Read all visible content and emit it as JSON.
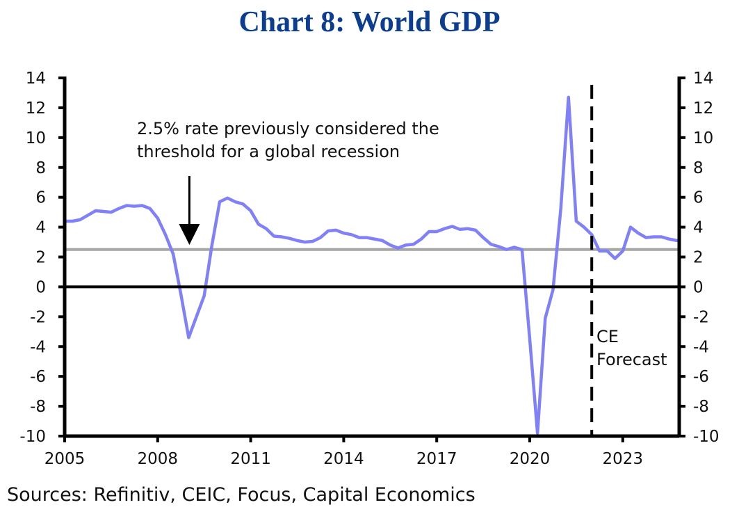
{
  "chart_data": {
    "type": "line",
    "title": "Chart 8: World GDP",
    "xlabel": "",
    "ylabel": "",
    "ylim": [
      -10,
      14
    ],
    "xlim": [
      2005,
      2024.85
    ],
    "y_ticks": [
      14,
      12,
      10,
      8,
      6,
      4,
      2,
      0,
      -2,
      -4,
      -6,
      -8,
      -10
    ],
    "y_tick_labels": [
      "14",
      "12",
      "10",
      "8",
      "6",
      "4",
      "2",
      "0",
      "-2",
      "-4",
      "-6",
      "-8",
      "-10"
    ],
    "x_ticks": [
      2005,
      2008,
      2011,
      2014,
      2017,
      2020,
      2023
    ],
    "x_tick_labels": [
      "2005",
      "2008",
      "2011",
      "2014",
      "2017",
      "2020",
      "2023"
    ],
    "grid": false,
    "dual_y_axis": true,
    "series": [
      {
        "name": "World GDP",
        "color": "#8080f8",
        "x_start": 2005,
        "x_step": 0.25,
        "values": [
          4.4,
          4.4,
          4.5,
          4.8,
          5.1,
          5.05,
          5.0,
          5.25,
          5.45,
          5.4,
          5.45,
          5.25,
          4.6,
          3.5,
          2.2,
          -0.5,
          -3.4,
          -2.0,
          -0.6,
          2.8,
          5.7,
          5.95,
          5.7,
          5.55,
          5.1,
          4.2,
          3.9,
          3.4,
          3.35,
          3.25,
          3.1,
          3.0,
          3.05,
          3.3,
          3.75,
          3.8,
          3.6,
          3.5,
          3.3,
          3.3,
          3.2,
          3.1,
          2.8,
          2.6,
          2.8,
          2.85,
          3.2,
          3.7,
          3.7,
          3.9,
          4.05,
          3.85,
          3.9,
          3.8,
          3.3,
          2.85,
          2.7,
          2.5,
          2.65,
          2.5,
          -3.5,
          -9.8,
          -2.1,
          -0.2,
          5.2,
          12.7,
          4.4,
          4.0,
          3.5,
          2.4,
          2.4,
          1.9,
          2.4,
          4.0,
          3.6,
          3.3,
          3.35,
          3.35,
          3.2,
          3.1
        ]
      }
    ],
    "reference_lines": [
      {
        "name": "recession-threshold",
        "type": "horizontal",
        "value": 2.5,
        "color": "#a6a6a6"
      },
      {
        "name": "zero-line",
        "type": "horizontal",
        "value": 0,
        "color": "#000000"
      },
      {
        "name": "forecast-divider",
        "type": "vertical",
        "value": 2022.0,
        "color": "#000000",
        "style": "dashed"
      }
    ],
    "annotations": [
      {
        "name": "threshold-note",
        "lines": [
          "2.5% rate previously considered the",
          "threshold for a global recession"
        ],
        "arrow_target_x": 2009.0,
        "arrow_target_y": 2.9
      },
      {
        "name": "forecast-label",
        "lines": [
          "CE",
          "Forecast"
        ]
      }
    ],
    "source": "Sources: Refinitiv, CEIC, Focus, Capital Economics"
  }
}
